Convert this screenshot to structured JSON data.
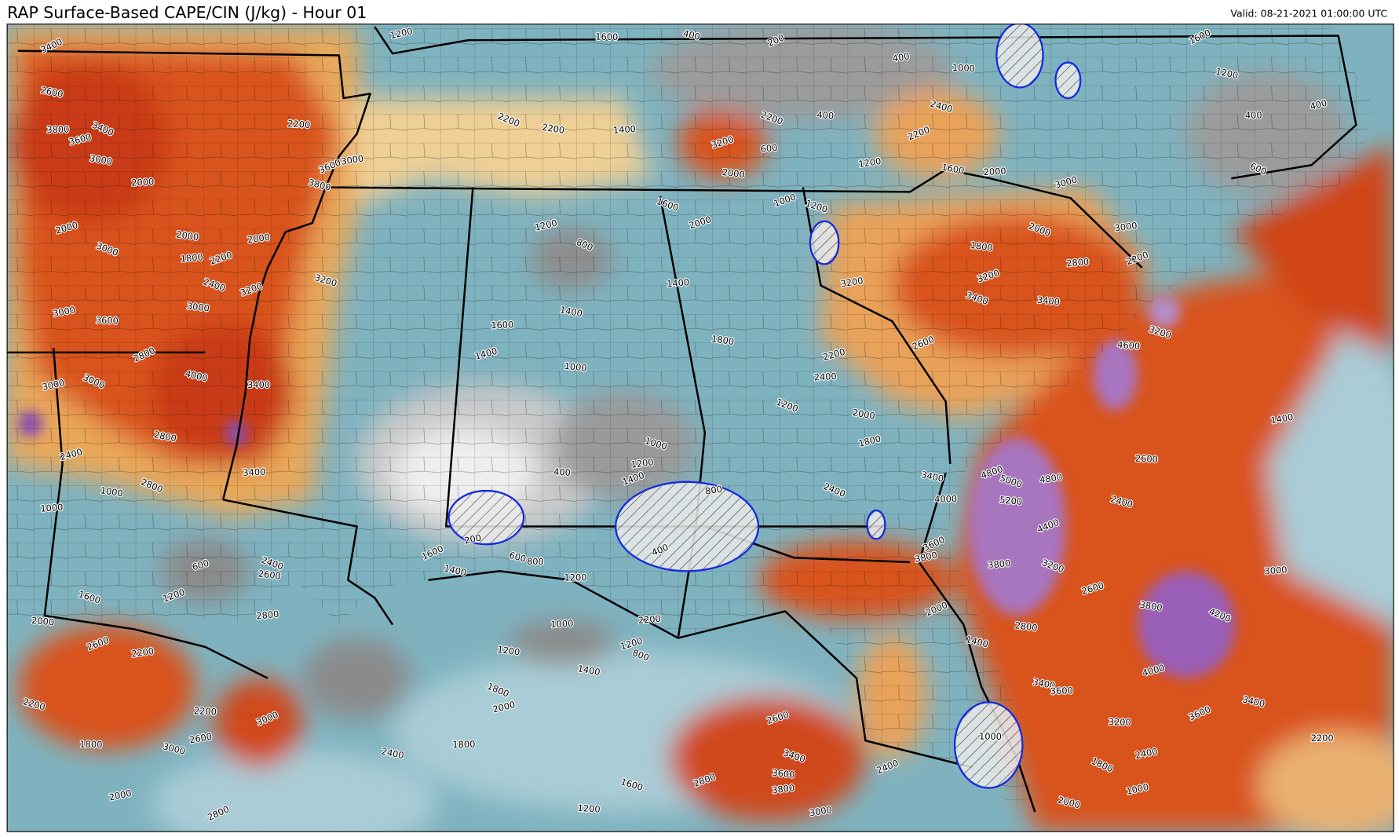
{
  "header": {
    "title": "RAP Surface-Based CAPE/CIN (J/kg) - Hour 01",
    "valid": "Valid: 08-21-2021 01:00:00 UTC"
  },
  "contour_labels": [
    3400,
    2600,
    3800,
    3600,
    3400,
    3000,
    2000,
    2000,
    3000,
    2000,
    1800,
    2200,
    2400,
    3000,
    2000,
    3200,
    3200,
    2200,
    3000,
    3600,
    3800,
    3600,
    3000,
    2800,
    4000,
    3400,
    3000,
    3000,
    2800,
    3400,
    2400,
    2800,
    1000,
    1000,
    600,
    2400,
    2600,
    2800,
    1200,
    1600,
    2000,
    2200,
    2600,
    2200,
    2200,
    2600,
    3000,
    3000,
    1800,
    2000,
    2800,
    2400,
    1800,
    2000,
    1800,
    1400,
    1000,
    1200,
    800,
    1200,
    2200,
    2600,
    3400,
    3600,
    3800,
    2800,
    1600,
    1200,
    3000,
    2400,
    2000,
    3200,
    2400,
    3600,
    3400,
    2200,
    1000,
    1800,
    3400,
    3600,
    4000,
    4200,
    3800,
    3000,
    2600,
    3200,
    2800,
    3800,
    4800,
    5000,
    5200,
    4800,
    4400,
    2400,
    2600,
    1400,
    2000,
    1400,
    1000,
    3800,
    3600,
    3400,
    4000,
    1800,
    2400,
    2000,
    2400,
    2200,
    1200,
    1800,
    1400,
    2000,
    1600,
    1000,
    1200,
    1400,
    1000,
    400,
    800,
    400,
    600,
    800,
    200,
    1600,
    1400,
    1200,
    1200,
    800,
    1400,
    1600,
    1400,
    2200,
    2200,
    1400,
    3200,
    2200,
    2000,
    600,
    1000,
    1200,
    400,
    1200,
    2200,
    2400,
    1000,
    400,
    200,
    400,
    1600,
    1200,
    1600,
    1200,
    400,
    400,
    600,
    1600,
    2000,
    3000,
    2000,
    1800,
    2800,
    3200,
    3400,
    3400,
    3000,
    2200,
    3200,
    4600,
    3200,
    2600
  ]
}
